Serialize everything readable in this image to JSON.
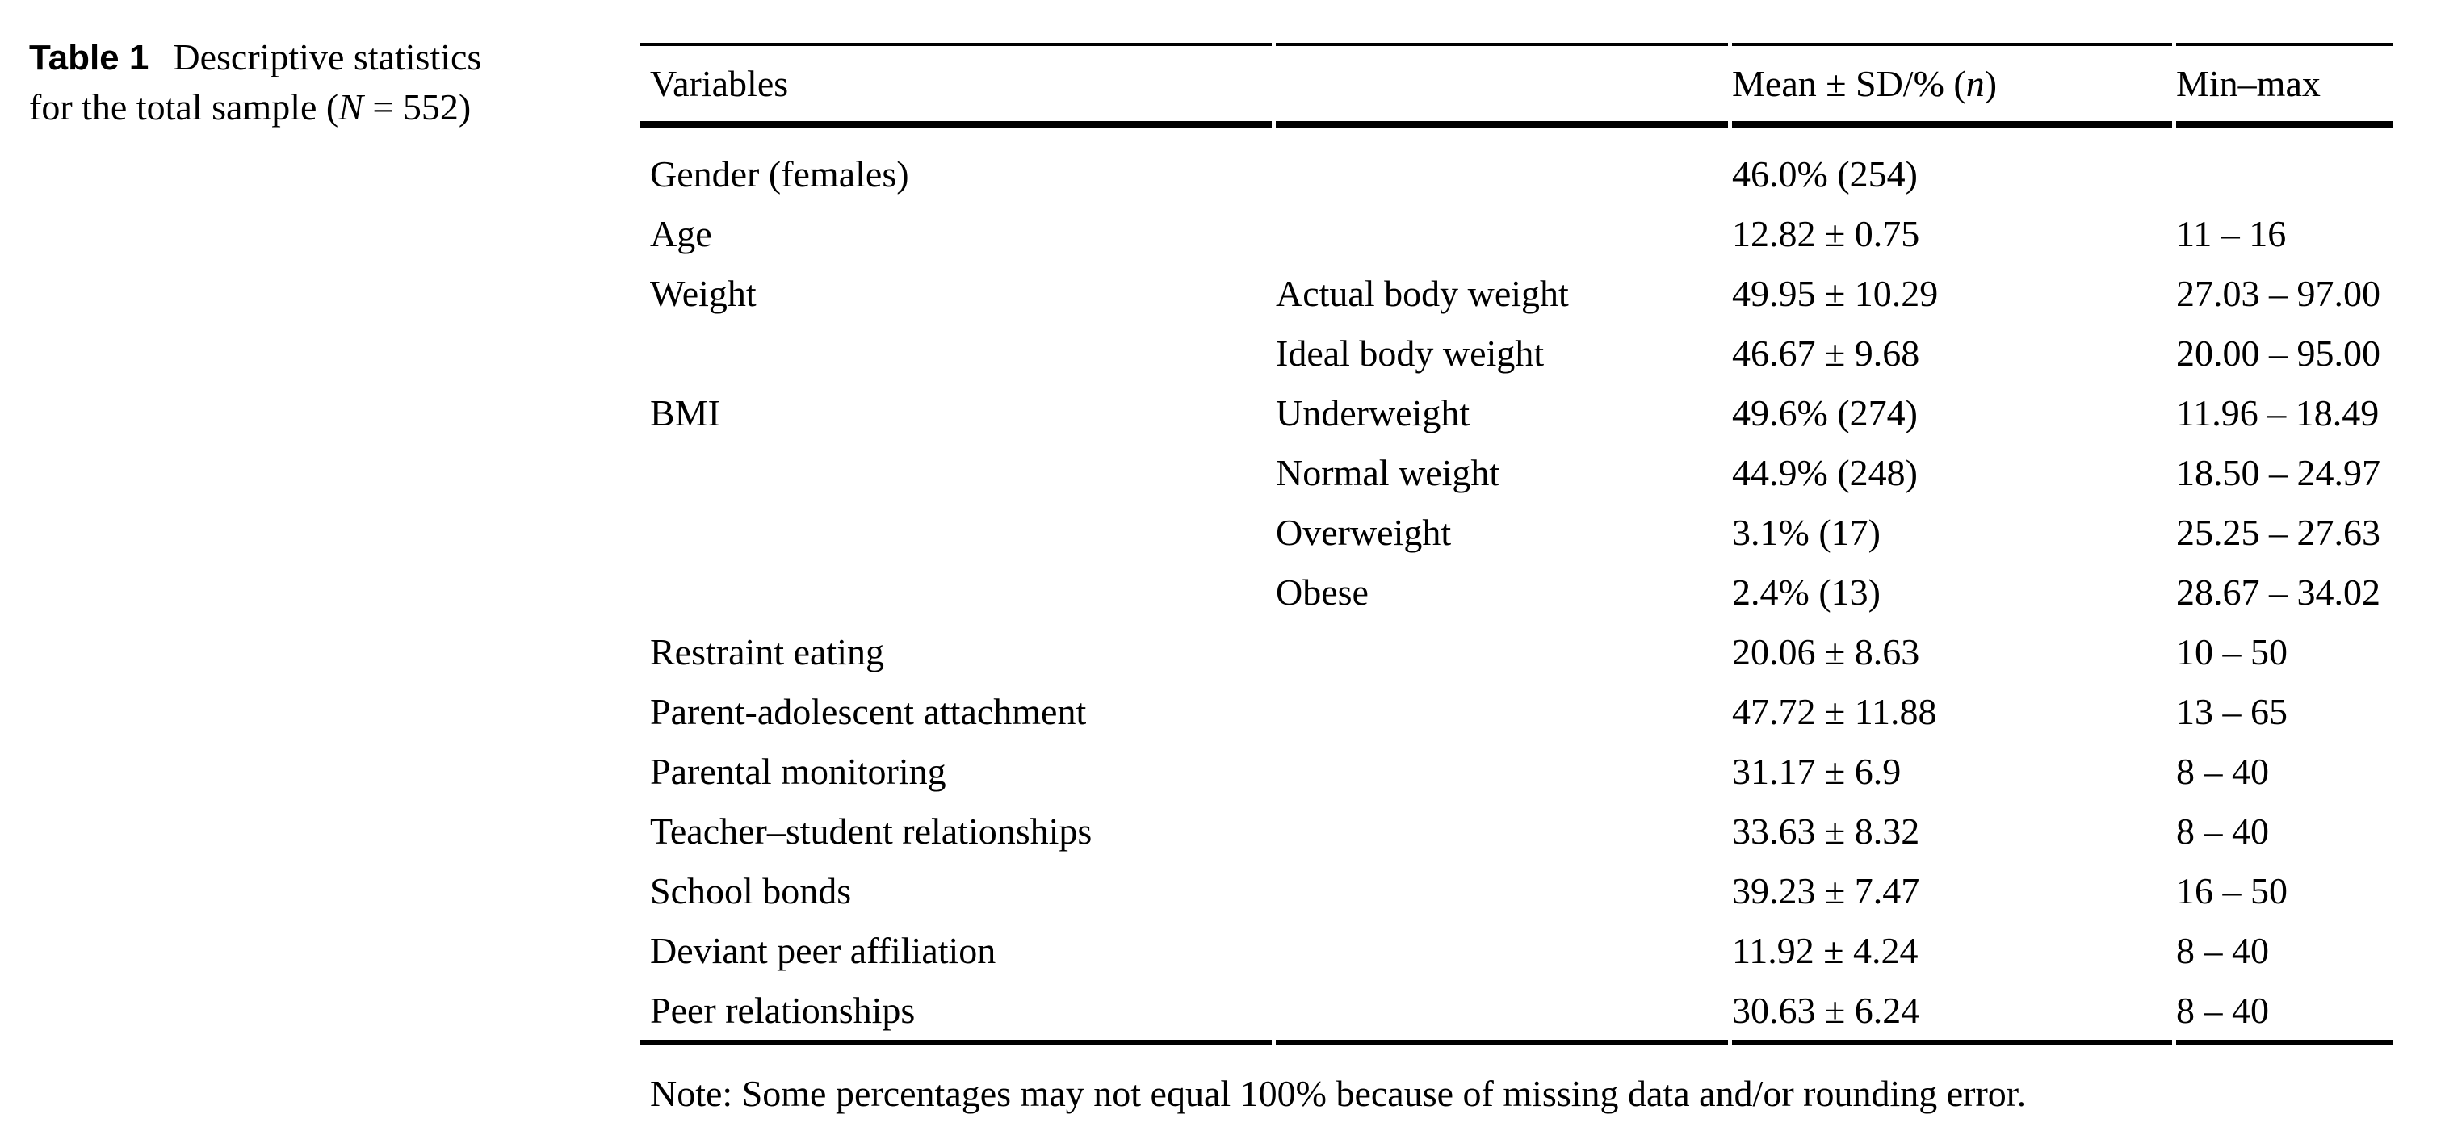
{
  "page": {
    "background": "#ffffff",
    "text_color": "#000000"
  },
  "caption": {
    "label": "Table 1",
    "line1_rest": "Descriptive statistics",
    "line2_pre": "for the total sample (",
    "line2_italic": "N",
    "line2_post": " = 552)"
  },
  "table": {
    "header": {
      "variables": "Variables",
      "mean_pre": "Mean ± SD/% (",
      "mean_italic": "n",
      "mean_post": ")",
      "minmax": "Min–max"
    },
    "rows": [
      {
        "label": "Gender (females)",
        "sub": "",
        "mean": "46.0% (254)",
        "range": ""
      },
      {
        "label": "Age",
        "sub": "",
        "mean": "12.82 ± 0.75",
        "range": "11 – 16"
      },
      {
        "label": "Weight",
        "sub": "Actual body weight",
        "mean": "49.95 ± 10.29",
        "range": "27.03 – 97.00"
      },
      {
        "label": "",
        "sub": "Ideal body weight",
        "mean": "46.67 ± 9.68",
        "range": "20.00 – 95.00"
      },
      {
        "label": "BMI",
        "sub": "Underweight",
        "mean": "49.6% (274)",
        "range": "11.96 – 18.49"
      },
      {
        "label": "",
        "sub": "Normal weight",
        "mean": "44.9% (248)",
        "range": "18.50 – 24.97"
      },
      {
        "label": "",
        "sub": "Overweight",
        "mean": "3.1% (17)",
        "range": "25.25 – 27.63"
      },
      {
        "label": "",
        "sub": "Obese",
        "mean": "2.4% (13)",
        "range": "28.67 – 34.02"
      },
      {
        "label": "Restraint eating",
        "sub": "",
        "mean": "20.06 ± 8.63",
        "range": "10 – 50"
      },
      {
        "label": "Parent-adolescent attachment",
        "sub": "",
        "mean": "47.72 ± 11.88",
        "range": "13 – 65"
      },
      {
        "label": "Parental monitoring",
        "sub": "",
        "mean": "31.17 ± 6.9",
        "range": "8 – 40"
      },
      {
        "label": "Teacher–student relationships",
        "sub": "",
        "mean": "33.63 ± 8.32",
        "range": "8 – 40"
      },
      {
        "label": "School bonds",
        "sub": "",
        "mean": "39.23 ± 7.47",
        "range": "16 – 50"
      },
      {
        "label": "Deviant peer affiliation",
        "sub": "",
        "mean": "11.92 ± 4.24",
        "range": "8 – 40"
      },
      {
        "label": "Peer relationships",
        "sub": "",
        "mean": "30.63 ± 6.24",
        "range": "8 – 40"
      }
    ],
    "note": "Note: Some percentages may not equal 100% because of missing data and/or rounding error."
  }
}
